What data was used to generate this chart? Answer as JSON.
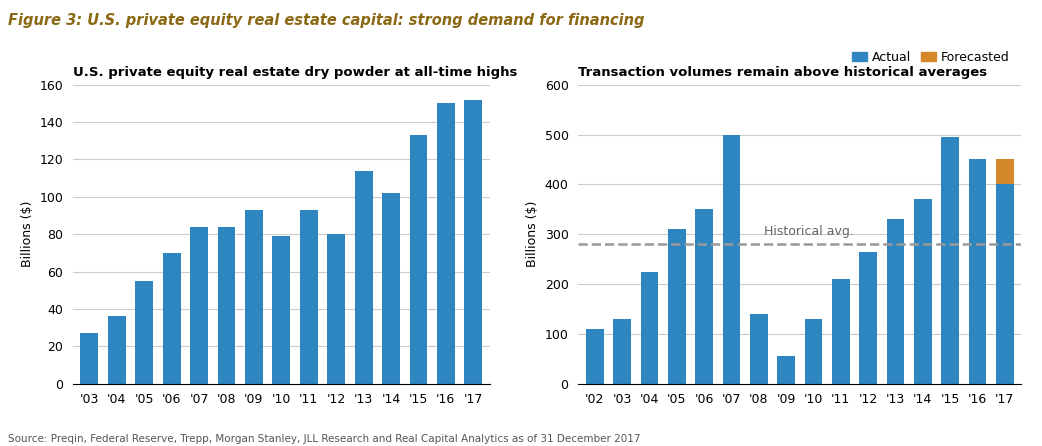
{
  "title": "Figure 3: U.S. private equity real estate capital: strong demand for financing",
  "title_color": "#8B6914",
  "source_text": "Source: Preqin, Federal Reserve, Trepp, Morgan Stanley, JLL Research and Real Capital Analytics as of 31 December 2017",
  "left_subtitle": "U.S. private equity real estate dry powder at all-time highs",
  "left_ylabel": "Billions ($)",
  "left_years": [
    "'03",
    "'04",
    "'05",
    "'06",
    "'07",
    "'08",
    "'09",
    "'10",
    "'11",
    "'12",
    "'13",
    "'14",
    "'15",
    "'16",
    "'17"
  ],
  "left_values": [
    27,
    36,
    55,
    70,
    84,
    84,
    93,
    79,
    93,
    80,
    114,
    102,
    133,
    150,
    152
  ],
  "left_ylim": [
    0,
    160
  ],
  "left_yticks": [
    0,
    20,
    40,
    60,
    80,
    100,
    120,
    140,
    160
  ],
  "right_subtitle": "Transaction volumes remain above historical averages",
  "right_ylabel": "Billions ($)",
  "right_years": [
    "'02",
    "'03",
    "'04",
    "'05",
    "'06",
    "'07",
    "'08",
    "'09",
    "'10",
    "'11",
    "'12",
    "'13",
    "'14",
    "'15",
    "'16",
    "'17"
  ],
  "right_values_blue": [
    110,
    130,
    225,
    310,
    350,
    500,
    140,
    55,
    130,
    210,
    265,
    330,
    370,
    495,
    450,
    400
  ],
  "right_values_orange": [
    0,
    0,
    0,
    0,
    0,
    0,
    0,
    0,
    0,
    0,
    0,
    0,
    0,
    0,
    0,
    50
  ],
  "right_ylim": [
    0,
    600
  ],
  "right_yticks": [
    0,
    100,
    200,
    300,
    400,
    500,
    600
  ],
  "historical_avg": 280,
  "historical_avg_color": "#999999",
  "historical_avg_label": "Historical avg.",
  "legend_actual": "Actual",
  "legend_forecasted": "Forecasted",
  "bar_color_blue": "#2E86C1",
  "bar_color_orange": "#D4882A",
  "grid_color": "#cccccc",
  "tick_label_fontsize": 9,
  "subtitle_fontsize": 9.5,
  "ylabel_fontsize": 9
}
